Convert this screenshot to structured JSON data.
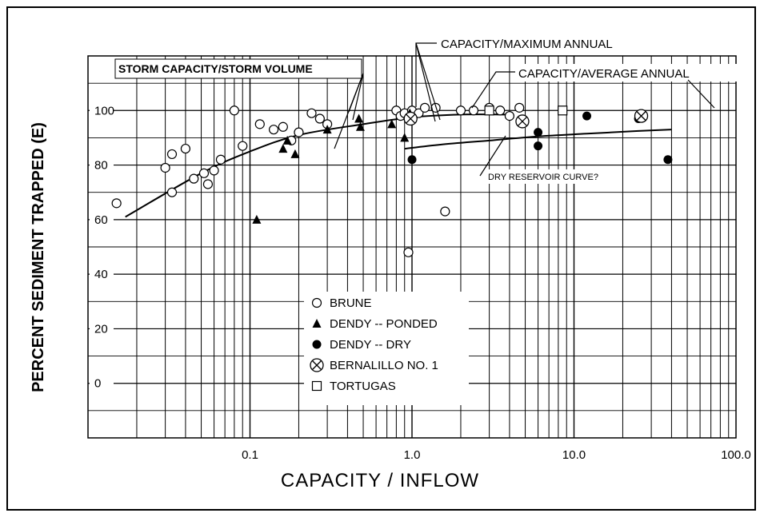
{
  "chart_data": {
    "type": "scatter",
    "x_scale": "log",
    "xlim": [
      0.01,
      100
    ],
    "ylim": [
      -20,
      120
    ],
    "xlabel": "CAPACITY / INFLOW",
    "ylabel": "PERCENT SEDIMENT TRAPPED (E)",
    "x_ticks": [
      "0.1",
      "1.0",
      "10.0",
      "100.0"
    ],
    "y_ticks": [
      "0",
      "20",
      "40",
      "60",
      "80",
      "100"
    ],
    "grid": true,
    "legend_position": "bottom-right",
    "series": [
      {
        "name": "BRUNE",
        "marker": "open-circle",
        "points": [
          [
            0.015,
            66
          ],
          [
            0.03,
            79
          ],
          [
            0.033,
            84
          ],
          [
            0.033,
            70
          ],
          [
            0.04,
            86
          ],
          [
            0.045,
            75
          ],
          [
            0.052,
            77
          ],
          [
            0.055,
            73
          ],
          [
            0.06,
            78
          ],
          [
            0.066,
            82
          ],
          [
            0.08,
            100
          ],
          [
            0.09,
            87
          ],
          [
            0.115,
            95
          ],
          [
            0.14,
            93
          ],
          [
            0.16,
            94
          ],
          [
            0.18,
            89
          ],
          [
            0.2,
            92
          ],
          [
            0.24,
            99
          ],
          [
            0.27,
            97
          ],
          [
            0.3,
            95
          ],
          [
            0.8,
            100
          ],
          [
            0.85,
            98
          ],
          [
            0.9,
            99
          ],
          [
            0.95,
            97
          ],
          [
            1.0,
            100
          ],
          [
            1.1,
            99
          ],
          [
            1.2,
            101
          ],
          [
            1.4,
            101
          ],
          [
            1.6,
            63
          ],
          [
            2.0,
            100
          ],
          [
            2.4,
            100
          ],
          [
            3.0,
            101
          ],
          [
            3.5,
            100
          ],
          [
            4.0,
            98
          ],
          [
            4.6,
            101
          ],
          [
            0.95,
            48
          ]
        ]
      },
      {
        "name": "DENDY -- PONDED",
        "marker": "filled-triangle",
        "points": [
          [
            0.11,
            60
          ],
          [
            0.16,
            86
          ],
          [
            0.17,
            89
          ],
          [
            0.19,
            84
          ],
          [
            0.3,
            93
          ],
          [
            0.47,
            97
          ],
          [
            0.48,
            94
          ],
          [
            0.75,
            95
          ],
          [
            0.9,
            90
          ],
          [
            0.97,
            99
          ]
        ]
      },
      {
        "name": "DENDY -- DRY",
        "marker": "filled-circle",
        "points": [
          [
            1.0,
            82
          ],
          [
            6.0,
            92
          ],
          [
            6.0,
            87
          ],
          [
            12.0,
            98
          ],
          [
            25.0,
            97
          ],
          [
            38.0,
            82
          ]
        ]
      },
      {
        "name": "BERNALILLO NO. 1",
        "marker": "circle-cross",
        "points": [
          [
            0.98,
            97
          ],
          [
            4.8,
            96
          ],
          [
            26.0,
            98
          ]
        ]
      },
      {
        "name": "TORTUGAS",
        "marker": "open-square",
        "points": [
          [
            3.0,
            100
          ],
          [
            8.5,
            100
          ]
        ]
      }
    ],
    "curves": [
      {
        "id": "main-curve",
        "points": [
          [
            0.017,
            61
          ],
          [
            0.05,
            77
          ],
          [
            0.1,
            85
          ],
          [
            0.2,
            91
          ],
          [
            0.5,
            95
          ],
          [
            1.0,
            97.5
          ],
          [
            2.0,
            98.5
          ],
          [
            4.0,
            98.5
          ]
        ]
      },
      {
        "id": "dry-curve",
        "points": [
          [
            0.9,
            86
          ],
          [
            1.5,
            87.5
          ],
          [
            3.0,
            89
          ],
          [
            6.0,
            90.5
          ],
          [
            12.0,
            91.5
          ],
          [
            25.0,
            92.5
          ],
          [
            40.0,
            93
          ]
        ]
      }
    ],
    "annotations": {
      "storm": "STORM CAPACITY/STORM VOLUME",
      "maximum": "CAPACITY/MAXIMUM ANNUAL",
      "average": "CAPACITY/AVERAGE ANNUAL",
      "dry": "DRY RESERVOIR CURVE?"
    }
  }
}
